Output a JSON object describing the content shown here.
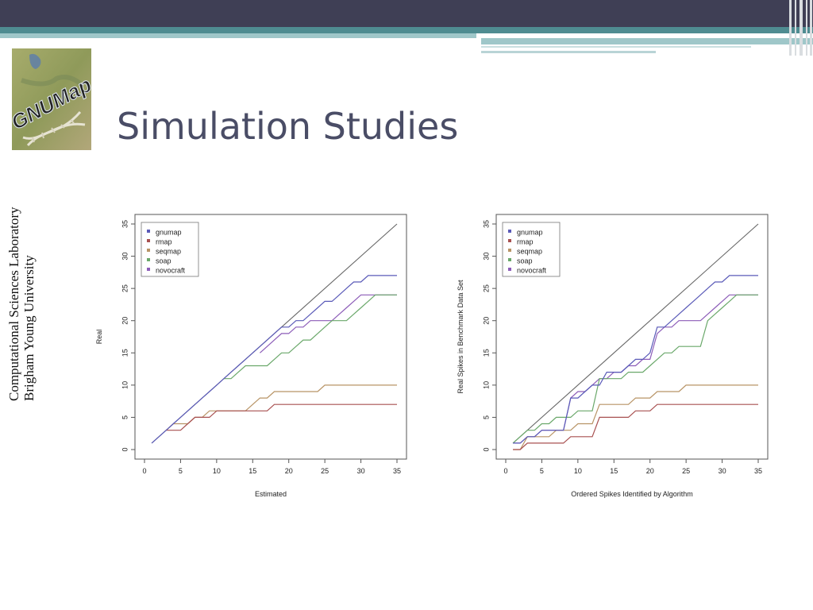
{
  "slide": {
    "title": "Simulation Studies",
    "logo_text": "GNUMap",
    "side_line1": "Computational Sciences Laboratory",
    "side_line2": "Brigham Young University"
  },
  "colors": {
    "gnumap": "#5a5ab8",
    "rmap": "#a85050",
    "seqmap": "#b89466",
    "soap": "#6aa86a",
    "novocraft": "#8c5cb8",
    "diagonal": "#666666"
  },
  "chart_data": [
    {
      "type": "line",
      "xlabel": "Estimated",
      "ylabel": "Real",
      "xlim": [
        0,
        35
      ],
      "ylim": [
        0,
        35
      ],
      "xticks": [
        0,
        5,
        10,
        15,
        20,
        25,
        30,
        35
      ],
      "yticks": [
        0,
        5,
        10,
        15,
        20,
        25,
        30,
        35
      ],
      "legend": "top-left",
      "series": [
        {
          "name": "gnumap",
          "color": "#5a5ab8",
          "points": [
            [
              1,
              1
            ],
            [
              2,
              2
            ],
            [
              3,
              3
            ],
            [
              4,
              4
            ],
            [
              5,
              5
            ],
            [
              6,
              6
            ],
            [
              7,
              7
            ],
            [
              8,
              8
            ],
            [
              9,
              9
            ],
            [
              10,
              10
            ],
            [
              11,
              11
            ],
            [
              12,
              12
            ],
            [
              13,
              13
            ],
            [
              14,
              14
            ],
            [
              15,
              15
            ],
            [
              16,
              16
            ],
            [
              17,
              17
            ],
            [
              18,
              18
            ],
            [
              19,
              19
            ],
            [
              20,
              19
            ],
            [
              21,
              20
            ],
            [
              22,
              20
            ],
            [
              23,
              21
            ],
            [
              24,
              22
            ],
            [
              25,
              23
            ],
            [
              26,
              23
            ],
            [
              27,
              24
            ],
            [
              28,
              25
            ],
            [
              29,
              26
            ],
            [
              30,
              26
            ],
            [
              31,
              27
            ],
            [
              35,
              27
            ]
          ]
        },
        {
          "name": "rmap",
          "color": "#a85050",
          "points": [
            [
              3,
              3
            ],
            [
              5,
              3
            ],
            [
              6,
              4
            ],
            [
              7,
              5
            ],
            [
              9,
              5
            ],
            [
              10,
              6
            ],
            [
              16,
              6
            ],
            [
              17,
              6
            ],
            [
              18,
              7
            ],
            [
              35,
              7
            ]
          ]
        },
        {
          "name": "seqmap",
          "color": "#b89466",
          "points": [
            [
              3,
              3
            ],
            [
              4,
              4
            ],
            [
              6,
              4
            ],
            [
              7,
              5
            ],
            [
              8,
              5
            ],
            [
              9,
              6
            ],
            [
              14,
              6
            ],
            [
              15,
              7
            ],
            [
              16,
              8
            ],
            [
              17,
              8
            ],
            [
              18,
              9
            ],
            [
              24,
              9
            ],
            [
              25,
              10
            ],
            [
              35,
              10
            ]
          ]
        },
        {
          "name": "soap",
          "color": "#6aa86a",
          "points": [
            [
              11,
              11
            ],
            [
              12,
              11
            ],
            [
              13,
              12
            ],
            [
              14,
              13
            ],
            [
              17,
              13
            ],
            [
              18,
              14
            ],
            [
              19,
              15
            ],
            [
              20,
              15
            ],
            [
              21,
              16
            ],
            [
              22,
              17
            ],
            [
              23,
              17
            ],
            [
              24,
              18
            ],
            [
              25,
              19
            ],
            [
              26,
              20
            ],
            [
              28,
              20
            ],
            [
              29,
              21
            ],
            [
              30,
              22
            ],
            [
              31,
              23
            ],
            [
              32,
              24
            ],
            [
              35,
              24
            ]
          ]
        },
        {
          "name": "novocraft",
          "color": "#8c5cb8",
          "points": [
            [
              16,
              15
            ],
            [
              17,
              16
            ],
            [
              18,
              17
            ],
            [
              19,
              18
            ],
            [
              20,
              18
            ],
            [
              21,
              19
            ],
            [
              22,
              19
            ],
            [
              23,
              20
            ],
            [
              24,
              20
            ],
            [
              26,
              20
            ],
            [
              27,
              21
            ],
            [
              28,
              22
            ],
            [
              29,
              23
            ],
            [
              30,
              24
            ],
            [
              31,
              24
            ],
            [
              35,
              24
            ]
          ]
        }
      ]
    },
    {
      "type": "line",
      "xlabel": "Ordered Spikes Identified by Algorithm",
      "ylabel": "Real Spikes in Benchmark Data Set",
      "xlim": [
        0,
        35
      ],
      "ylim": [
        0,
        35
      ],
      "xticks": [
        0,
        5,
        10,
        15,
        20,
        25,
        30,
        35
      ],
      "yticks": [
        0,
        5,
        10,
        15,
        20,
        25,
        30,
        35
      ],
      "legend": "top-left",
      "series": [
        {
          "name": "gnumap",
          "color": "#5a5ab8",
          "points": [
            [
              1,
              1
            ],
            [
              2,
              1
            ],
            [
              3,
              2
            ],
            [
              4,
              2
            ],
            [
              5,
              3
            ],
            [
              6,
              3
            ],
            [
              8,
              3
            ],
            [
              9,
              8
            ],
            [
              10,
              8
            ],
            [
              11,
              9
            ],
            [
              12,
              10
            ],
            [
              13,
              10
            ],
            [
              14,
              12
            ],
            [
              15,
              12
            ],
            [
              16,
              12
            ],
            [
              17,
              13
            ],
            [
              18,
              14
            ],
            [
              19,
              14
            ],
            [
              20,
              15
            ],
            [
              21,
              19
            ],
            [
              22,
              19
            ],
            [
              23,
              20
            ],
            [
              24,
              21
            ],
            [
              25,
              22
            ],
            [
              26,
              23
            ],
            [
              27,
              24
            ],
            [
              28,
              25
            ],
            [
              29,
              26
            ],
            [
              30,
              26
            ],
            [
              31,
              27
            ],
            [
              35,
              27
            ]
          ]
        },
        {
          "name": "rmap",
          "color": "#a85050",
          "points": [
            [
              1,
              0
            ],
            [
              2,
              0
            ],
            [
              3,
              1
            ],
            [
              8,
              1
            ],
            [
              9,
              2
            ],
            [
              12,
              2
            ],
            [
              13,
              5
            ],
            [
              16,
              5
            ],
            [
              17,
              5
            ],
            [
              18,
              6
            ],
            [
              20,
              6
            ],
            [
              21,
              7
            ],
            [
              35,
              7
            ]
          ]
        },
        {
          "name": "seqmap",
          "color": "#b89466",
          "points": [
            [
              1,
              0
            ],
            [
              2,
              0
            ],
            [
              3,
              2
            ],
            [
              5,
              2
            ],
            [
              6,
              2
            ],
            [
              7,
              3
            ],
            [
              9,
              3
            ],
            [
              10,
              4
            ],
            [
              12,
              4
            ],
            [
              13,
              7
            ],
            [
              16,
              7
            ],
            [
              17,
              7
            ],
            [
              18,
              8
            ],
            [
              20,
              8
            ],
            [
              21,
              9
            ],
            [
              24,
              9
            ],
            [
              25,
              10
            ],
            [
              35,
              10
            ]
          ]
        },
        {
          "name": "soap",
          "color": "#6aa86a",
          "points": [
            [
              1,
              1
            ],
            [
              2,
              2
            ],
            [
              3,
              3
            ],
            [
              4,
              3
            ],
            [
              5,
              4
            ],
            [
              6,
              4
            ],
            [
              7,
              5
            ],
            [
              9,
              5
            ],
            [
              10,
              6
            ],
            [
              12,
              6
            ],
            [
              13,
              11
            ],
            [
              16,
              11
            ],
            [
              17,
              12
            ],
            [
              18,
              12
            ],
            [
              19,
              12
            ],
            [
              20,
              13
            ],
            [
              21,
              14
            ],
            [
              22,
              15
            ],
            [
              23,
              15
            ],
            [
              24,
              16
            ],
            [
              26,
              16
            ],
            [
              27,
              16
            ],
            [
              28,
              20
            ],
            [
              29,
              21
            ],
            [
              30,
              22
            ],
            [
              31,
              23
            ],
            [
              32,
              24
            ],
            [
              35,
              24
            ]
          ]
        },
        {
          "name": "novocraft",
          "color": "#8c5cb8",
          "points": [
            [
              1,
              1
            ],
            [
              2,
              1
            ],
            [
              3,
              2
            ],
            [
              4,
              2
            ],
            [
              5,
              3
            ],
            [
              6,
              3
            ],
            [
              8,
              3
            ],
            [
              9,
              8
            ],
            [
              10,
              9
            ],
            [
              11,
              9
            ],
            [
              12,
              10
            ],
            [
              13,
              11
            ],
            [
              14,
              11
            ],
            [
              15,
              12
            ],
            [
              16,
              12
            ],
            [
              17,
              13
            ],
            [
              18,
              13
            ],
            [
              19,
              14
            ],
            [
              20,
              14
            ],
            [
              21,
              18
            ],
            [
              22,
              19
            ],
            [
              23,
              19
            ],
            [
              24,
              20
            ],
            [
              26,
              20
            ],
            [
              27,
              20
            ],
            [
              28,
              21
            ],
            [
              29,
              22
            ],
            [
              30,
              23
            ],
            [
              31,
              24
            ],
            [
              35,
              24
            ]
          ]
        }
      ]
    }
  ]
}
